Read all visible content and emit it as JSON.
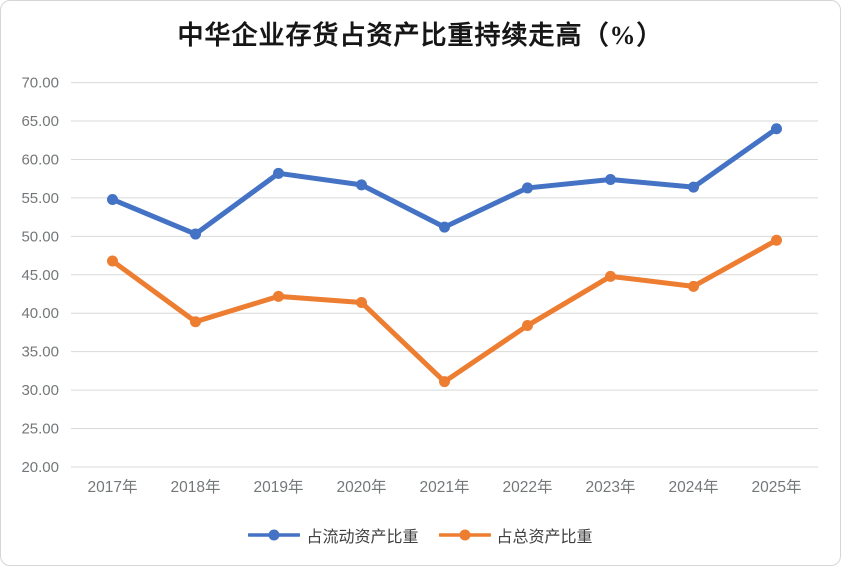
{
  "chart_data": {
    "type": "line",
    "title": "中华企业存货占资产比重持续走高（%）",
    "categories": [
      "2017年",
      "2018年",
      "2019年",
      "2020年",
      "2021年",
      "2022年",
      "2023年",
      "2024年",
      "2025年"
    ],
    "series": [
      {
        "name": "占流动资产比重",
        "color": "#4472C4",
        "values": [
          54.8,
          50.3,
          58.2,
          56.7,
          51.2,
          56.3,
          57.4,
          56.4,
          64.0
        ]
      },
      {
        "name": "占总资产比重",
        "color": "#ED7D31",
        "values": [
          46.8,
          38.9,
          42.2,
          41.4,
          31.1,
          38.4,
          44.8,
          43.5,
          49.5
        ]
      }
    ],
    "xlabel": "",
    "ylabel": "",
    "ylim": [
      20,
      70
    ],
    "ytick_step": 5,
    "ytick_labels": [
      "20.00",
      "25.00",
      "30.00",
      "35.00",
      "40.00",
      "45.00",
      "50.00",
      "55.00",
      "60.00",
      "65.00",
      "70.00"
    ],
    "grid": true,
    "gridline_color": "#d9d9d9",
    "legend_position": "bottom",
    "legend": [
      "占流动资产比重",
      "占总资产比重"
    ]
  }
}
